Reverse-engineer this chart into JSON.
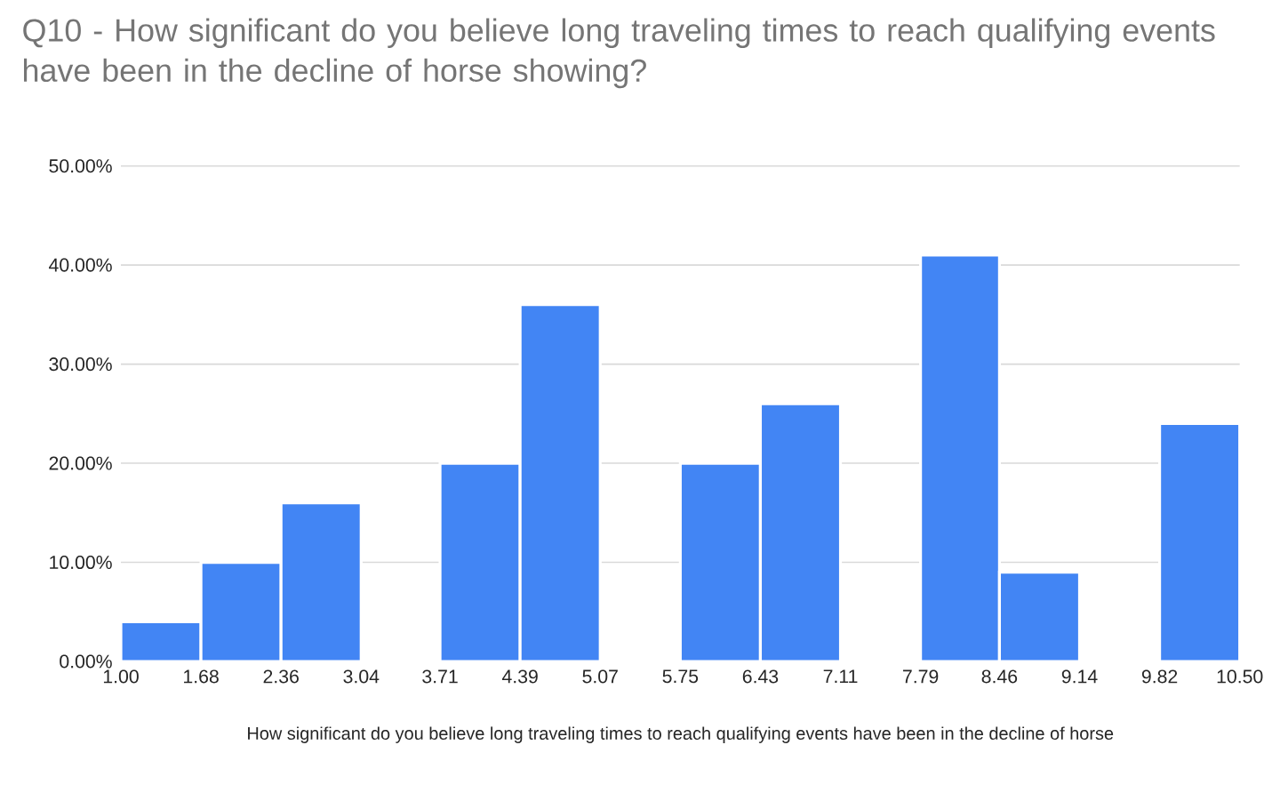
{
  "chart_data": {
    "type": "histogram",
    "title": "Q10 - How significant do you believe long traveling times to reach qualifying events have been in the decline of horse showing?",
    "xlabel": "How significant do you believe long traveling times to reach qualifying events have been in the decline of horse",
    "bins": [
      1.0,
      1.68,
      2.36,
      3.04,
      3.71,
      4.39,
      5.07,
      5.75,
      6.43,
      7.11,
      7.79,
      8.46,
      9.14,
      9.82,
      10.5
    ],
    "values": [
      4,
      10,
      16,
      0,
      20,
      36,
      0,
      20,
      26,
      0,
      41,
      9,
      0,
      24
    ],
    "color": "#4285f4",
    "xlim": [
      1.0,
      10.5
    ],
    "xticks": [
      {
        "value": 1.0,
        "label": "1.00"
      },
      {
        "value": 1.68,
        "label": "1.68"
      },
      {
        "value": 2.36,
        "label": "2.36"
      },
      {
        "value": 3.04,
        "label": "3.04"
      },
      {
        "value": 3.71,
        "label": "3.71"
      },
      {
        "value": 4.39,
        "label": "4.39"
      },
      {
        "value": 5.07,
        "label": "5.07"
      },
      {
        "value": 5.75,
        "label": "5.75"
      },
      {
        "value": 6.43,
        "label": "6.43"
      },
      {
        "value": 7.11,
        "label": "7.11"
      },
      {
        "value": 7.79,
        "label": "7.79"
      },
      {
        "value": 8.46,
        "label": "8.46"
      },
      {
        "value": 9.14,
        "label": "9.14"
      },
      {
        "value": 9.82,
        "label": "9.82"
      },
      {
        "value": 10.5,
        "label": "10.50"
      }
    ],
    "ylim": [
      0,
      50
    ],
    "yticks": [
      {
        "value": 0,
        "label": "0.00%"
      },
      {
        "value": 10,
        "label": "10.00%"
      },
      {
        "value": 20,
        "label": "20.00%"
      },
      {
        "value": 30,
        "label": "30.00%"
      },
      {
        "value": 40,
        "label": "40.00%"
      },
      {
        "value": 50,
        "label": "50.00%"
      }
    ],
    "grid": "y"
  }
}
